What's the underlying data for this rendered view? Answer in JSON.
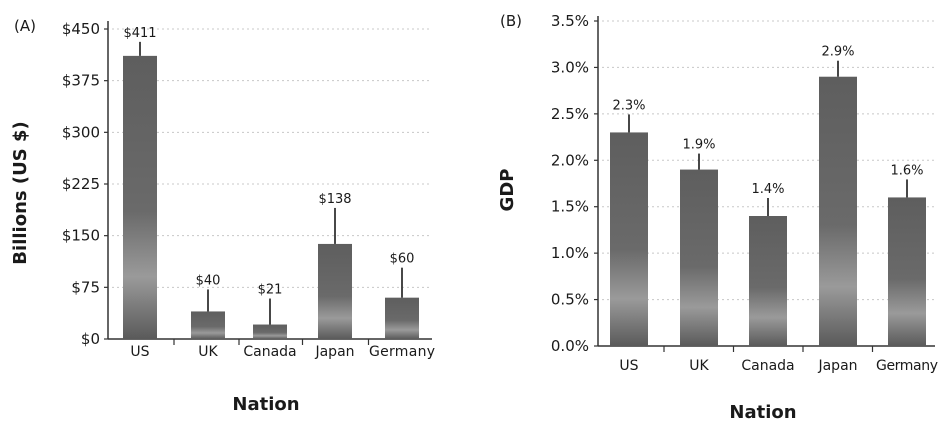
{
  "chart_data": [
    {
      "type": "bar",
      "panel_label": "(A)",
      "categories": [
        "US",
        "UK",
        "Canada",
        "Japan",
        "Germany"
      ],
      "values": [
        411,
        40,
        21,
        138,
        60
      ],
      "data_labels": [
        "$411",
        "$40",
        "$21",
        "$138",
        "$60"
      ],
      "ylabel": "Billions (US $)",
      "xlabel": "Nation",
      "ylim": [
        0,
        450
      ],
      "yticks": [
        "$0",
        "$75",
        "$150",
        "$225",
        "$300",
        "$375",
        "$450"
      ],
      "grid": true
    },
    {
      "type": "bar",
      "panel_label": "(B)",
      "categories": [
        "US",
        "UK",
        "Canada",
        "Japan",
        "Germany"
      ],
      "values": [
        2.3,
        1.9,
        1.4,
        2.9,
        1.6
      ],
      "data_labels": [
        "2.3%",
        "1.9%",
        "1.4%",
        "2.9%",
        "1.6%"
      ],
      "ylabel": "GDP",
      "xlabel": "Nation",
      "ylim": [
        0,
        3.5
      ],
      "yticks": [
        "0.0%",
        "0.5%",
        "1.0%",
        "1.5%",
        "2.0%",
        "2.5%",
        "3.0%",
        "3.5%"
      ],
      "grid": true
    }
  ]
}
